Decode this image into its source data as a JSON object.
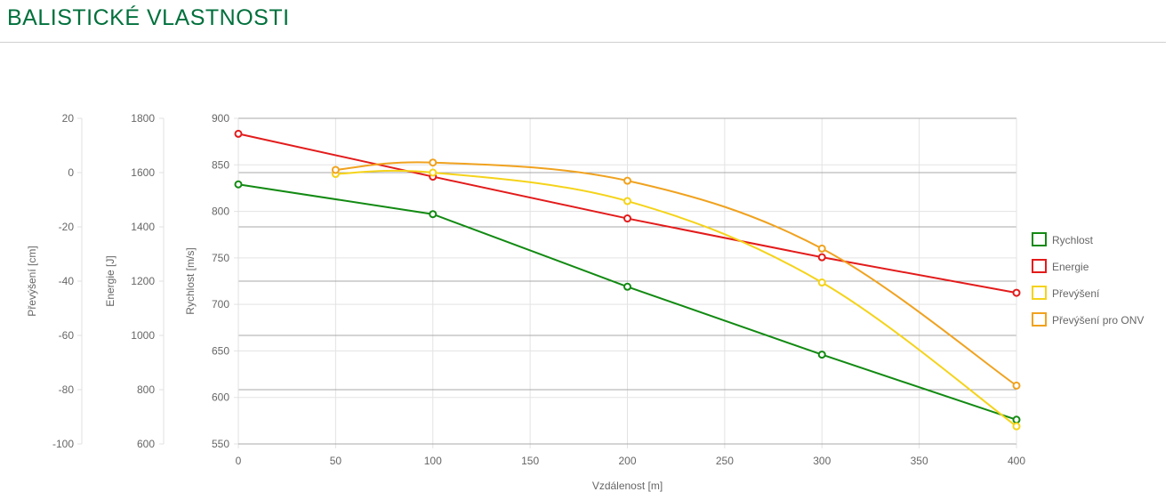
{
  "header": {
    "title": "BALISTICKÉ VLASTNOSTI"
  },
  "chart_data": {
    "type": "line",
    "xlabel": "Vzdálenost [m]",
    "x_ticks": [
      0,
      50,
      100,
      150,
      200,
      250,
      300,
      350,
      400
    ],
    "xlim": [
      0,
      400
    ],
    "grid": true,
    "legend_position": "right",
    "axes": [
      {
        "id": "speed",
        "label": "Rychlost [m/s]",
        "ticks": [
          550,
          600,
          650,
          700,
          750,
          800,
          850,
          900
        ],
        "ylim": [
          550,
          900
        ]
      },
      {
        "id": "energy",
        "label": "Energie [J]",
        "ticks": [
          600,
          800,
          1000,
          1200,
          1400,
          1600,
          1800
        ],
        "ylim": [
          600,
          1800
        ]
      },
      {
        "id": "drop",
        "label": "Převýšení [cm]",
        "ticks": [
          -100,
          -80,
          -60,
          -40,
          -20,
          0,
          20
        ],
        "ylim": [
          -100,
          20
        ]
      }
    ],
    "series": [
      {
        "name": "Rychlost",
        "axis": "speed",
        "color": "#128a12",
        "curve": "straight",
        "x": [
          0,
          100,
          200,
          300,
          400
        ],
        "y": [
          829,
          797,
          719,
          646,
          576
        ]
      },
      {
        "name": "Energie",
        "axis": "energy",
        "color": "#e31b1b",
        "curve": "straight",
        "x": [
          0,
          100,
          200,
          300,
          400
        ],
        "y": [
          1743,
          1585,
          1431,
          1288,
          1157
        ]
      },
      {
        "name": "Převýšení",
        "axis": "drop",
        "color": "#f5d31a",
        "curve": "smooth",
        "x": [
          50,
          100,
          200,
          300,
          400
        ],
        "y": [
          -0.5,
          0,
          -10.5,
          -40.5,
          -93.5
        ]
      },
      {
        "name": "Převýšení pro ONV",
        "axis": "drop",
        "color": "#f0a21f",
        "curve": "smooth",
        "x": [
          50,
          100,
          200,
          300,
          400
        ],
        "y": [
          1,
          3.7,
          -3,
          -28,
          -78.5
        ]
      }
    ]
  }
}
